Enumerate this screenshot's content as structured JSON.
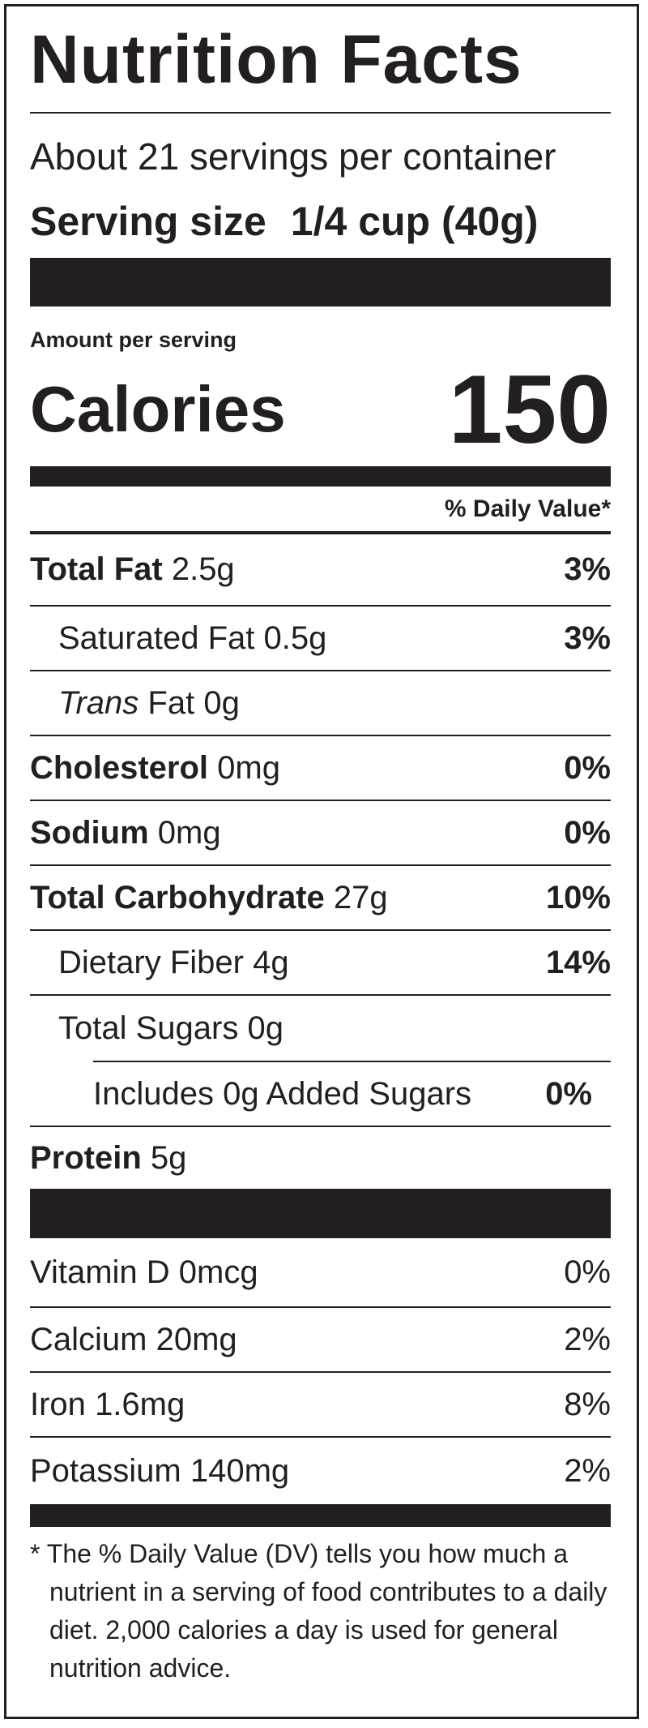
{
  "header": {
    "title": "Nutrition Facts",
    "servings": "About 21 servings per container",
    "serving_size_label": "Serving size",
    "serving_size_value": "1/4 cup (40g)"
  },
  "calories": {
    "amount_per_serving": "Amount per serving",
    "label": "Calories",
    "value": 150
  },
  "daily_value_header": "% Daily Value*",
  "nutrients": [
    {
      "name": "Total Fat",
      "amount": "2.5g",
      "dv": "3%"
    },
    {
      "name": "Saturated Fat",
      "amount": "0.5g",
      "dv": "3%"
    },
    {
      "name_italic": "Trans",
      "name": "Fat",
      "amount": "0g"
    },
    {
      "name": "Cholesterol",
      "amount": "0mg",
      "dv": "0%"
    },
    {
      "name": "Sodium",
      "amount": "0mg",
      "dv": "0%"
    },
    {
      "name": "Total Carbohydrate",
      "amount": "27g",
      "dv": "10%"
    },
    {
      "name": "Dietary Fiber",
      "amount": "4g",
      "dv": "14%"
    },
    {
      "name": "Total Sugars",
      "amount": "0g"
    },
    {
      "name": "Includes 0g Added Sugars",
      "dv": "0%"
    },
    {
      "name": "Protein",
      "amount": "5g"
    }
  ],
  "vitamins": [
    {
      "name": "Vitamin D",
      "amount": "0mcg",
      "dv": "0%"
    },
    {
      "name": "Calcium",
      "amount": "20mg",
      "dv": "2%"
    },
    {
      "name": "Iron",
      "amount": "1.6mg",
      "dv": "8%"
    },
    {
      "name": "Potassium",
      "amount": "140mg",
      "dv": "2%"
    }
  ],
  "footnote": "* The % Daily Value (DV) tells you how much a nutrient in a serving of food contributes to a daily diet. 2,000 calories a day is used for general nutrition advice."
}
